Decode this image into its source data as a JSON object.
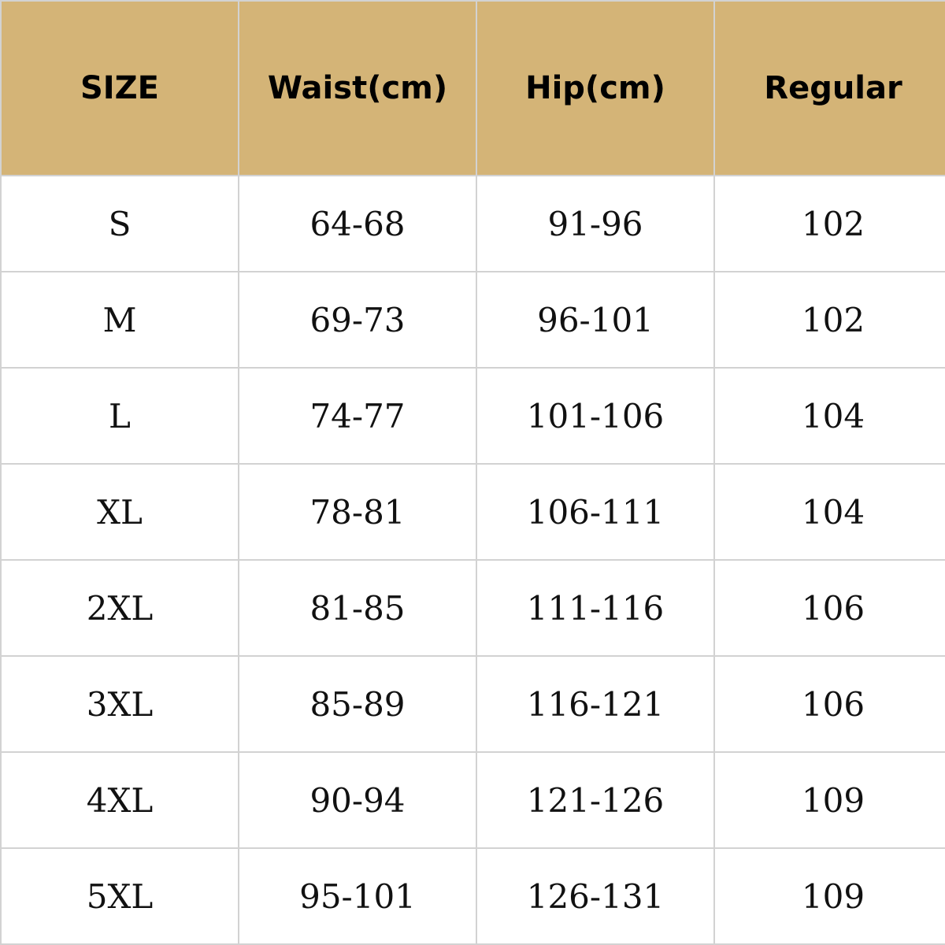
{
  "colors": {
    "header_bg": "#d4b477",
    "border": "#d2d2d2"
  },
  "table": {
    "headers": [
      "SIZE",
      "Waist(cm)",
      "Hip(cm)",
      "Regular"
    ],
    "rows": [
      [
        "S",
        "64-68",
        "91-96",
        "102"
      ],
      [
        "M",
        "69-73",
        "96-101",
        "102"
      ],
      [
        "L",
        "74-77",
        "101-106",
        "104"
      ],
      [
        "XL",
        "78-81",
        "106-111",
        "104"
      ],
      [
        "2XL",
        "81-85",
        "111-116",
        "106"
      ],
      [
        "3XL",
        "85-89",
        "116-121",
        "106"
      ],
      [
        "4XL",
        "90-94",
        "121-126",
        "109"
      ],
      [
        "5XL",
        "95-101",
        "126-131",
        "109"
      ]
    ]
  }
}
